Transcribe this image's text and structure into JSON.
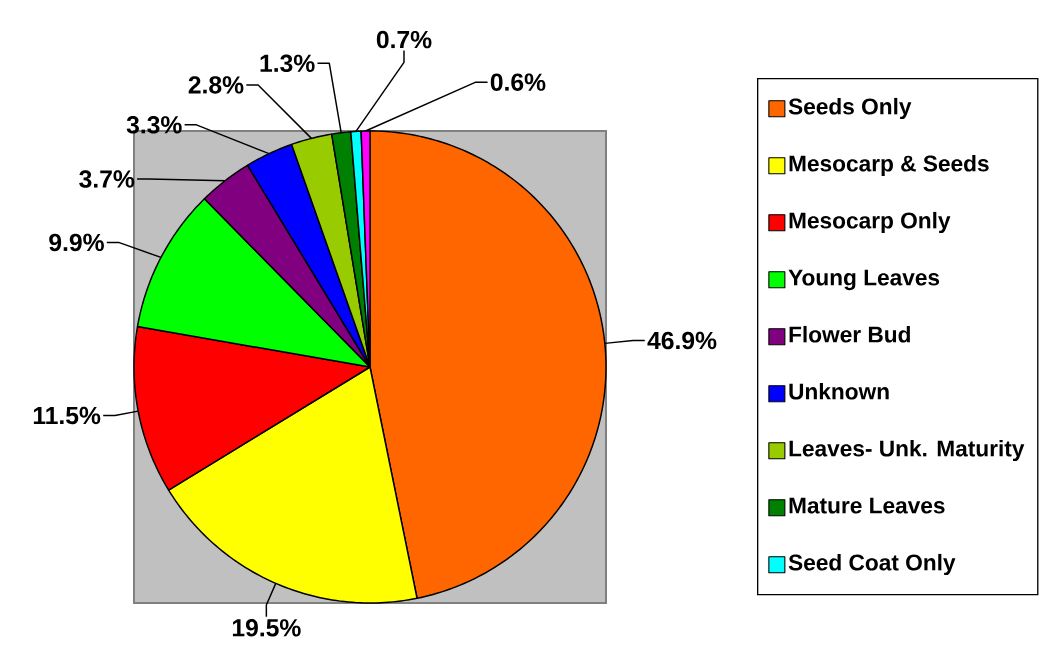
{
  "chart_data": {
    "type": "pie",
    "categories": [
      "Seeds Only",
      "Mesocarp & Seeds",
      "Mesocarp Only",
      "Young Leaves",
      "Flower Bud",
      "Unknown",
      "Leaves- Unk. Maturity",
      "Mature Leaves",
      "Seed Coat Only",
      null
    ],
    "values": [
      46.9,
      19.5,
      11.5,
      9.9,
      3.7,
      3.3,
      2.8,
      1.3,
      0.7,
      0.6
    ],
    "colors": [
      "#ff6600",
      "#ffff00",
      "#ff0000",
      "#00ff00",
      "#800080",
      "#0000ff",
      "#99cc00",
      "#008000",
      "#00ffff",
      "#ff00ff"
    ],
    "value_labels": [
      "46.9%",
      "19.5%",
      "11.5%",
      "9.9%",
      "3.7%",
      "3.3%",
      "2.8%",
      "1.3%",
      "0.7%",
      "0.6%"
    ],
    "legend": "right"
  }
}
